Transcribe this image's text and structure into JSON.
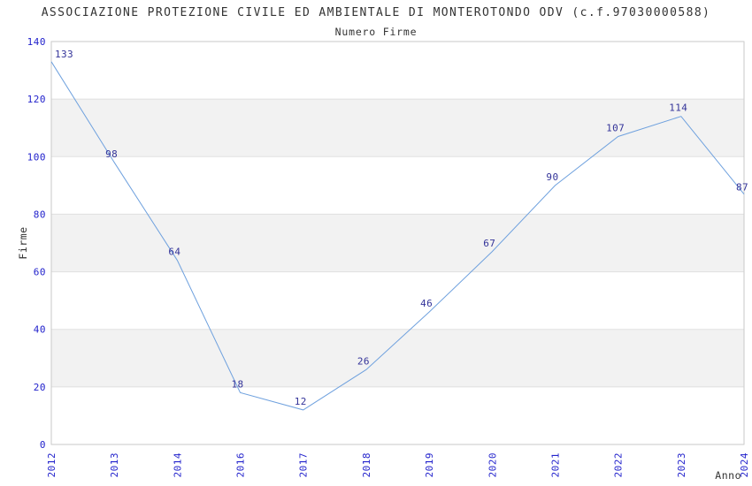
{
  "chart_data": {
    "type": "line",
    "title": "ASSOCIAZIONE PROTEZIONE CIVILE ED AMBIENTALE DI MONTEROTONDO ODV (c.f.97030000588)",
    "subtitle": "Numero Firme",
    "xlabel": "Anno",
    "ylabel": "Firme",
    "categories": [
      "2012",
      "2013",
      "2014",
      "2016",
      "2017",
      "2018",
      "2019",
      "2020",
      "2021",
      "2022",
      "2023",
      "2024"
    ],
    "series": [
      {
        "name": "Numero Firme",
        "values": [
          133,
          98,
          64,
          18,
          12,
          26,
          46,
          67,
          90,
          107,
          114,
          87
        ]
      }
    ],
    "yticks": [
      0,
      20,
      40,
      60,
      80,
      100,
      120,
      140
    ],
    "ylim": [
      0,
      140
    ],
    "grid": "horizontal-bands-alternating",
    "legend": "none",
    "data_labels_shown": true,
    "x_tick_rotation_degrees": 90,
    "colors": {
      "line": "#6fa1de",
      "axis_tick_labels": "#2222cc",
      "data_labels": "#333399",
      "title_text": "#333333",
      "band_fill": "#f2f2f2",
      "gridline": "#e0e0e0",
      "plot_border": "#c9c9c9",
      "background": "#ffffff"
    }
  }
}
